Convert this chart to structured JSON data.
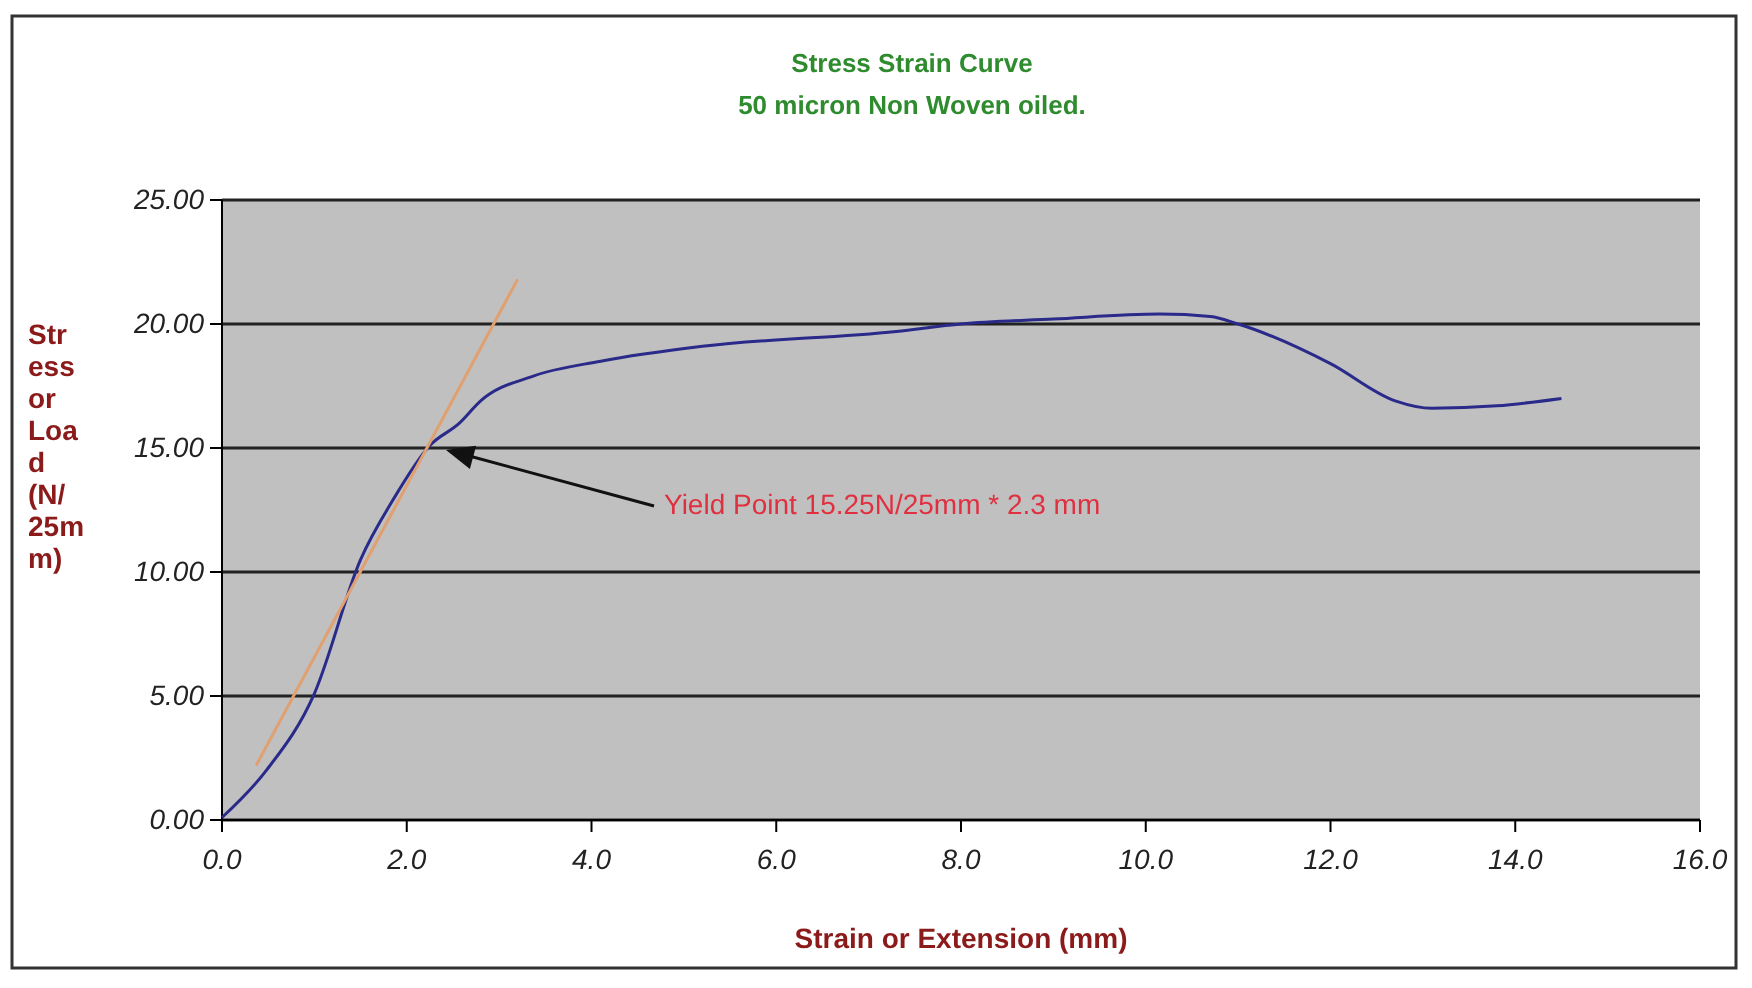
{
  "chart_data": {
    "type": "line",
    "title": "Stress Strain Curve",
    "subtitle": "50 micron Non Woven oiled.",
    "xlabel": "Strain or Extension (mm)",
    "ylabel": "Stress or Load (N/25mm)",
    "xlim": [
      0,
      16
    ],
    "ylim": [
      0,
      25
    ],
    "xticks": [
      {
        "value": 0,
        "label": "0.0"
      },
      {
        "value": 2,
        "label": "2.0"
      },
      {
        "value": 4,
        "label": "4.0"
      },
      {
        "value": 6,
        "label": "6.0"
      },
      {
        "value": 8,
        "label": "8.0"
      },
      {
        "value": 10,
        "label": "10.0"
      },
      {
        "value": 12,
        "label": "12.0"
      },
      {
        "value": 14,
        "label": "14.0"
      },
      {
        "value": 16,
        "label": "16.0"
      }
    ],
    "yticks": [
      {
        "value": 0,
        "label": "0.00"
      },
      {
        "value": 5,
        "label": "5.00"
      },
      {
        "value": 10,
        "label": "10.00"
      },
      {
        "value": 15,
        "label": "15.00"
      },
      {
        "value": 20,
        "label": "20.00"
      },
      {
        "value": 25,
        "label": "25.00"
      }
    ],
    "grid": "y",
    "series": [
      {
        "color": "#2a2a8a",
        "x": [
          0,
          0.48,
          1.0,
          1.5,
          1.85,
          2.25,
          2.57,
          2.8,
          3.37,
          4.1,
          5.2,
          7.3,
          8.0,
          9.0,
          10.15,
          10.7,
          11.0,
          12.0,
          12.7,
          13.1,
          13.8,
          14.5
        ],
        "values": [
          0.1,
          2.0,
          5.1,
          10.5,
          12.9,
          15.1,
          16.0,
          16.9,
          17.9,
          18.5,
          19.1,
          19.7,
          20.0,
          20.2,
          20.4,
          20.3,
          20.0,
          18.4,
          16.9,
          16.6,
          16.7,
          17.0
        ]
      },
      {
        "color": "#e0a070",
        "x": [
          0.37,
          3.2
        ],
        "values": [
          2.2,
          21.8
        ]
      }
    ],
    "annotations": [
      "Yield Point 15.25N/25mm * 2.3 mm"
    ]
  }
}
